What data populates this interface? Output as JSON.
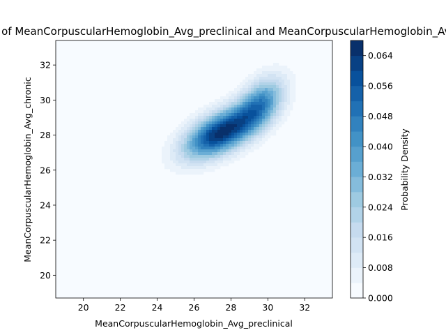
{
  "chart_data": {
    "type": "heatmap",
    "subtype": "kde-2d-filled-contour",
    "title": "Bivariate Distribution of MeanCorpuscularHemoglobin_Avg_preclinical and MeanCorpuscularHemoglobin_Avg_chronic",
    "xlabel": "MeanCorpuscularHemoglobin_Avg_preclinical",
    "ylabel": "MeanCorpuscularHemoglobin_Avg_chronic",
    "xlim": [
      18.5,
      33.5
    ],
    "ylim": [
      18.7,
      33.4
    ],
    "xticks": [
      20,
      22,
      24,
      26,
      28,
      30,
      32
    ],
    "yticks": [
      20,
      22,
      24,
      26,
      28,
      30,
      32
    ],
    "colormap": "Blues",
    "grid": false,
    "density_components": [
      {
        "mx": 27.4,
        "my": 28.1,
        "sx": 1.35,
        "sy": 1.0,
        "rho": 0.55,
        "w": 0.62
      },
      {
        "mx": 29.6,
        "my": 29.8,
        "sx": 0.9,
        "sy": 1.05,
        "rho": 0.45,
        "w": 0.38
      }
    ],
    "colorbar": {
      "label": "Probability Density",
      "min": 0.0,
      "max": 0.068,
      "levels": 17,
      "ticks": [
        0.0,
        0.008,
        0.016,
        0.024,
        0.032,
        0.04,
        0.048,
        0.056,
        0.064
      ],
      "tick_labels": [
        "0.000",
        "0.008",
        "0.016",
        "0.024",
        "0.032",
        "0.040",
        "0.048",
        "0.056",
        "0.064"
      ]
    }
  }
}
